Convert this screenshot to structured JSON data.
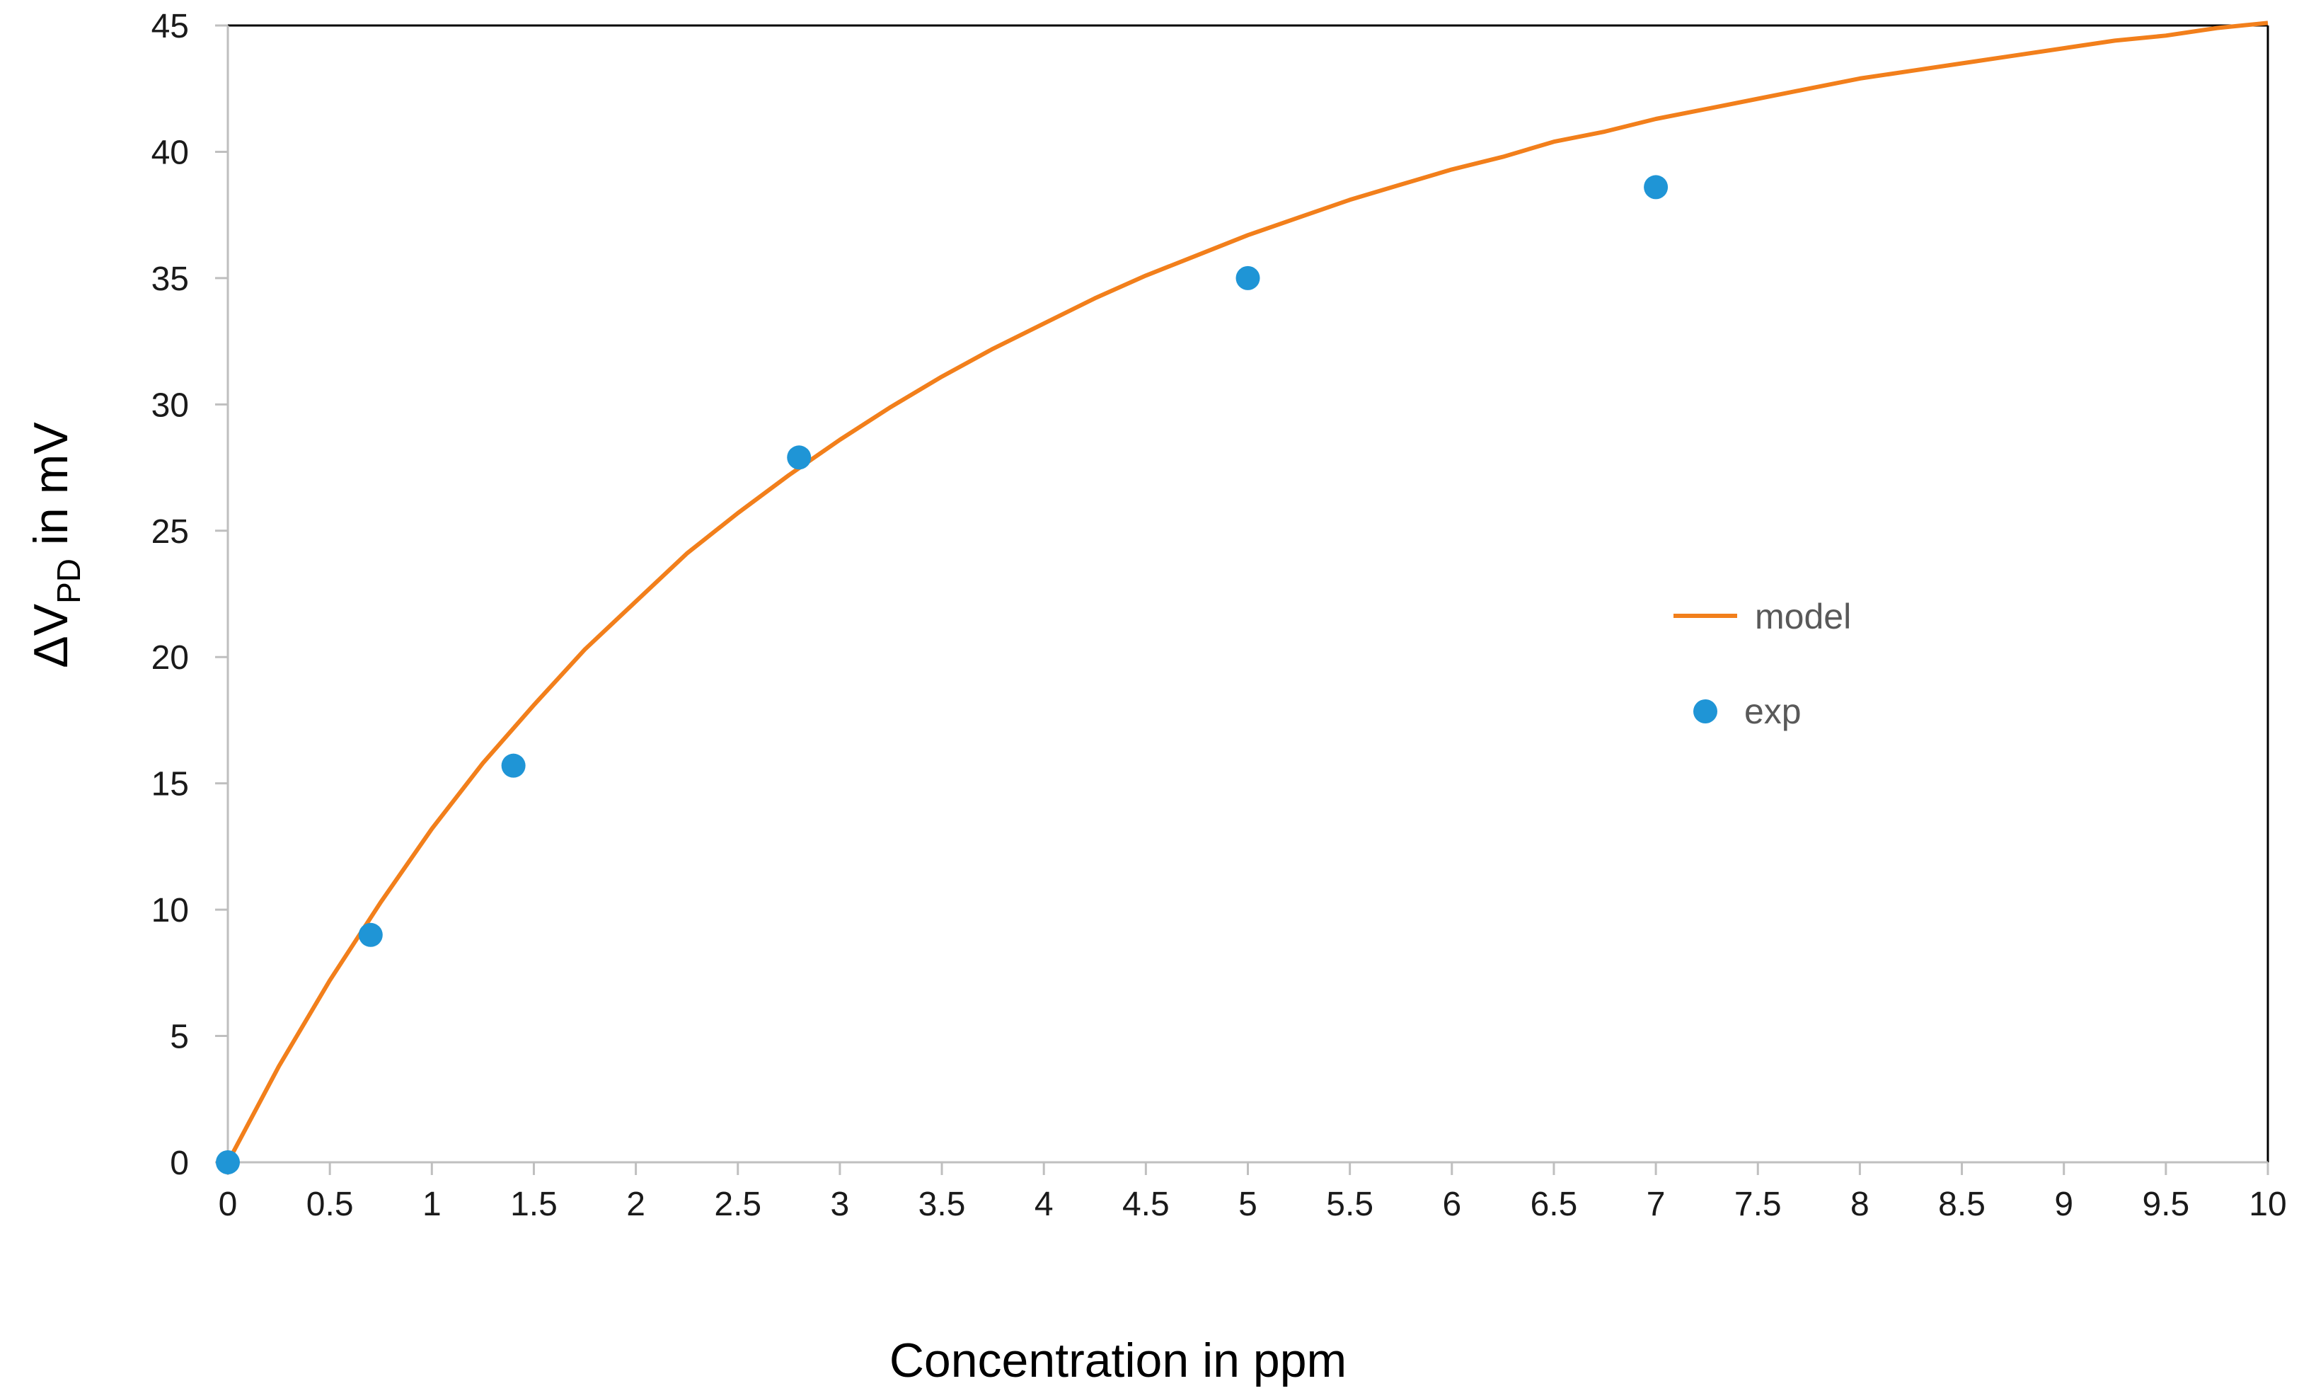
{
  "chart_data": {
    "type": "scatter",
    "title": "",
    "xlabel": "Concentration in ppm",
    "ylabel": {
      "prefix": "ΔV",
      "subscript": "PD",
      "suffix": " in mV"
    },
    "xlim": [
      0,
      10
    ],
    "ylim": [
      0,
      45
    ],
    "x_ticks": [
      0,
      0.5,
      1,
      1.5,
      2,
      2.5,
      3,
      3.5,
      4,
      4.5,
      5,
      5.5,
      6,
      6.5,
      7,
      7.5,
      8,
      8.5,
      9,
      9.5,
      10
    ],
    "y_ticks": [
      0,
      5,
      10,
      15,
      20,
      25,
      30,
      35,
      40,
      45
    ],
    "x_tick_labels": [
      "0",
      "0.5",
      "1",
      "1.5",
      "2",
      "2.5",
      "3",
      "3.5",
      "4",
      "4.5",
      "5",
      "5.5",
      "6",
      "6.5",
      "7",
      "7.5",
      "8",
      "8.5",
      "9",
      "9.5",
      "10"
    ],
    "y_tick_labels": [
      "0",
      "5",
      "10",
      "15",
      "20",
      "25",
      "30",
      "35",
      "40",
      "45"
    ],
    "grid": false,
    "legend_position": "center-right",
    "series": [
      {
        "name": "model",
        "kind": "line",
        "color": "#F27F1B",
        "x": [
          0,
          0.25,
          0.5,
          0.75,
          1,
          1.25,
          1.5,
          1.75,
          2,
          2.25,
          2.5,
          2.75,
          3,
          3.25,
          3.5,
          3.75,
          4,
          4.25,
          4.5,
          4.75,
          5,
          5.25,
          5.5,
          5.75,
          6,
          6.25,
          6.5,
          6.75,
          7,
          7.25,
          7.5,
          7.75,
          8,
          8.25,
          8.5,
          8.75,
          9,
          9.25,
          9.5,
          9.75,
          10
        ],
        "y": [
          0,
          3.8,
          7.2,
          10.3,
          13.2,
          15.8,
          18.1,
          20.3,
          22.2,
          24.1,
          25.7,
          27.2,
          28.6,
          29.9,
          31.1,
          32.2,
          33.2,
          34.2,
          35.1,
          35.9,
          36.7,
          37.4,
          38.1,
          38.7,
          39.3,
          39.8,
          40.4,
          40.8,
          41.3,
          41.7,
          42.1,
          42.5,
          42.9,
          43.2,
          43.5,
          43.8,
          44.1,
          44.4,
          44.6,
          44.9,
          45.1
        ]
      },
      {
        "name": "exp",
        "kind": "scatter",
        "color": "#1F95D6",
        "x": [
          0,
          0.7,
          1.4,
          2.8,
          5,
          7
        ],
        "y": [
          0,
          9,
          15.7,
          27.9,
          35,
          38.6
        ]
      }
    ]
  }
}
